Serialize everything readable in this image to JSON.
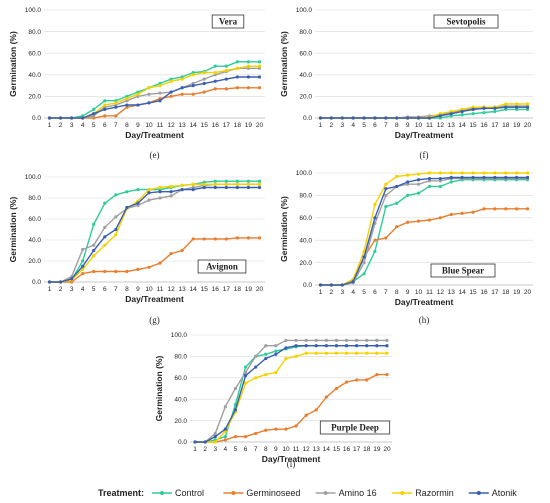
{
  "legend": {
    "heading": "Treatment:",
    "items": [
      {
        "name": "Control",
        "color": "#2ecc9a"
      },
      {
        "name": "Germinoseed",
        "color": "#e87e2e"
      },
      {
        "name": "Amino 16",
        "color": "#a0a0a0"
      },
      {
        "name": "Razormin",
        "color": "#f4d200"
      },
      {
        "name": "Atonik",
        "color": "#3a5fb0"
      }
    ]
  },
  "chart_data": [
    {
      "type": "line",
      "letter": "(e)",
      "title": "Vera",
      "xlabel": "Day/Treatment",
      "ylabel": "Germination (%)",
      "ylim": [
        0,
        100
      ],
      "yticks": [
        "0.0",
        "20.0",
        "40.0",
        "60.0",
        "80.0",
        "100.0"
      ],
      "x": [
        1,
        2,
        3,
        4,
        5,
        6,
        7,
        8,
        9,
        10,
        11,
        12,
        13,
        14,
        15,
        16,
        17,
        18,
        19,
        20
      ],
      "series": [
        {
          "name": "Control",
          "values": [
            0,
            0,
            0,
            2,
            8,
            16,
            16,
            20,
            24,
            28,
            32,
            36,
            38,
            42,
            43,
            48,
            48,
            52,
            52,
            52
          ]
        },
        {
          "name": "Germinoseed",
          "values": [
            0,
            0,
            0,
            0,
            0,
            2,
            2,
            10,
            12,
            14,
            18,
            20,
            22,
            22,
            24,
            27,
            27,
            28,
            28,
            28
          ]
        },
        {
          "name": "Amino 16",
          "values": [
            0,
            0,
            0,
            0,
            2,
            10,
            12,
            16,
            20,
            22,
            23,
            24,
            28,
            32,
            36,
            40,
            43,
            46,
            46,
            46
          ]
        },
        {
          "name": "Razormin",
          "values": [
            0,
            0,
            0,
            0,
            4,
            12,
            14,
            18,
            22,
            28,
            30,
            34,
            36,
            40,
            42,
            42,
            44,
            46,
            48,
            48
          ]
        },
        {
          "name": "Atonik",
          "values": [
            0,
            0,
            0,
            0,
            4,
            8,
            10,
            12,
            12,
            14,
            16,
            24,
            28,
            30,
            32,
            34,
            36,
            38,
            38,
            38
          ]
        }
      ]
    },
    {
      "type": "line",
      "letter": "(f)",
      "title": "Sevtopolis",
      "xlabel": "Day/Treatment",
      "ylabel": "Germination (%)",
      "ylim": [
        0,
        100
      ],
      "yticks": [
        "0.0",
        "20.0",
        "40.0",
        "60.0",
        "80.0",
        "100.0"
      ],
      "x": [
        1,
        2,
        3,
        4,
        5,
        6,
        7,
        8,
        9,
        10,
        11,
        12,
        13,
        14,
        15,
        16,
        17,
        18,
        19,
        20
      ],
      "series": [
        {
          "name": "Control",
          "values": [
            0,
            0,
            0,
            0,
            0,
            0,
            0,
            0,
            0,
            0,
            0,
            0,
            2,
            3,
            4,
            5,
            6,
            8,
            8,
            8
          ]
        },
        {
          "name": "Germinoseed",
          "values": [
            0,
            0,
            0,
            0,
            0,
            0,
            0,
            0,
            0,
            0,
            0,
            2,
            4,
            6,
            8,
            9,
            9,
            10,
            10,
            10
          ]
        },
        {
          "name": "Amino 16",
          "values": [
            0,
            0,
            0,
            0,
            0,
            0,
            0,
            0,
            1,
            1,
            2,
            3,
            5,
            7,
            9,
            10,
            10,
            11,
            11,
            11
          ]
        },
        {
          "name": "Razormin",
          "values": [
            0,
            0,
            0,
            0,
            0,
            0,
            0,
            0,
            0,
            0,
            1,
            4,
            6,
            8,
            10,
            10,
            10,
            13,
            13,
            13
          ]
        },
        {
          "name": "Atonik",
          "values": [
            0,
            0,
            0,
            0,
            0,
            0,
            0,
            0,
            0,
            0,
            0,
            2,
            4,
            6,
            8,
            9,
            9,
            10,
            10,
            10
          ]
        }
      ]
    },
    {
      "type": "line",
      "letter": "(g)",
      "title": "Avignon",
      "xlabel": "Day/Treatment",
      "ylabel": "Germination (%)",
      "ylim": [
        0,
        100
      ],
      "yticks": [
        "0.0",
        "20.0",
        "40.0",
        "60.0",
        "80.0",
        "100.0"
      ],
      "x": [
        1,
        2,
        3,
        4,
        5,
        6,
        7,
        8,
        9,
        10,
        11,
        12,
        13,
        14,
        15,
        16,
        17,
        18,
        19,
        20
      ],
      "series": [
        {
          "name": "Control",
          "values": [
            0,
            0,
            2,
            20,
            55,
            75,
            83,
            86,
            88,
            88,
            88,
            90,
            92,
            93,
            95,
            96,
            96,
            96,
            96,
            96
          ]
        },
        {
          "name": "Germinoseed",
          "values": [
            0,
            0,
            0,
            8,
            10,
            10,
            10,
            10,
            12,
            14,
            18,
            27,
            30,
            41,
            41,
            41,
            41,
            42,
            42,
            42
          ]
        },
        {
          "name": "Amino 16",
          "values": [
            0,
            0,
            5,
            31,
            35,
            52,
            62,
            70,
            73,
            78,
            80,
            82,
            88,
            90,
            92,
            93,
            93,
            93,
            93,
            93
          ]
        },
        {
          "name": "Razormin",
          "values": [
            0,
            0,
            2,
            12,
            25,
            35,
            45,
            70,
            77,
            88,
            90,
            91,
            92,
            93,
            93,
            93,
            93,
            93,
            93,
            93
          ]
        },
        {
          "name": "Atonik",
          "values": [
            0,
            0,
            3,
            15,
            30,
            43,
            50,
            71,
            75,
            85,
            86,
            86,
            88,
            88,
            90,
            90,
            90,
            90,
            90,
            90
          ]
        }
      ]
    },
    {
      "type": "line",
      "letter": "(h)",
      "title": "Blue Spear",
      "xlabel": "Day/Treatment",
      "ylabel": "Germination (%)",
      "ylim": [
        0,
        100
      ],
      "yticks": [
        "0.0",
        "20.0",
        "40.0",
        "60.0",
        "80.0",
        "100.0"
      ],
      "x": [
        1,
        2,
        3,
        4,
        5,
        6,
        7,
        8,
        9,
        10,
        11,
        12,
        13,
        14,
        15,
        16,
        17,
        18,
        19,
        20
      ],
      "series": [
        {
          "name": "Control",
          "values": [
            0,
            0,
            0,
            3,
            10,
            30,
            70,
            73,
            80,
            82,
            88,
            88,
            92,
            94,
            94,
            94,
            94,
            94,
            94,
            94
          ]
        },
        {
          "name": "Germinoseed",
          "values": [
            0,
            0,
            0,
            5,
            25,
            40,
            42,
            52,
            56,
            57,
            58,
            60,
            63,
            64,
            65,
            68,
            68,
            68,
            68,
            68
          ]
        },
        {
          "name": "Amino 16",
          "values": [
            0,
            0,
            0,
            2,
            20,
            55,
            80,
            88,
            90,
            90,
            93,
            93,
            95,
            95,
            95,
            95,
            95,
            95,
            95,
            95
          ]
        },
        {
          "name": "Razormin",
          "values": [
            0,
            0,
            0,
            5,
            30,
            72,
            90,
            97,
            98,
            99,
            100,
            100,
            100,
            100,
            100,
            100,
            100,
            100,
            100,
            100
          ]
        },
        {
          "name": "Atonik",
          "values": [
            0,
            0,
            0,
            3,
            25,
            60,
            86,
            88,
            92,
            94,
            95,
            95,
            96,
            96,
            96,
            96,
            96,
            96,
            96,
            96
          ]
        }
      ]
    },
    {
      "type": "line",
      "letter": "(i)",
      "title": "Purple Deep",
      "xlabel": "Day/Treatment",
      "ylabel": "Germination (%)",
      "ylim": [
        0,
        100
      ],
      "yticks": [
        "0.0",
        "20.0",
        "40.0",
        "60.0",
        "80.0",
        "100.0"
      ],
      "x": [
        1,
        2,
        3,
        4,
        5,
        6,
        7,
        8,
        9,
        10,
        11,
        12,
        13,
        14,
        15,
        16,
        17,
        18,
        19,
        20
      ],
      "series": [
        {
          "name": "Control",
          "values": [
            0,
            0,
            2,
            5,
            35,
            70,
            80,
            82,
            85,
            87,
            89,
            90,
            90,
            90,
            90,
            90,
            90,
            90,
            90,
            90
          ]
        },
        {
          "name": "Germinoseed",
          "values": [
            0,
            0,
            0,
            2,
            5,
            5,
            8,
            11,
            12,
            12,
            15,
            25,
            30,
            42,
            50,
            56,
            58,
            58,
            63,
            63
          ]
        },
        {
          "name": "Amino 16",
          "values": [
            0,
            0,
            8,
            33,
            50,
            65,
            80,
            90,
            90,
            95,
            95,
            95,
            95,
            95,
            95,
            95,
            95,
            95,
            95,
            95
          ]
        },
        {
          "name": "Razormin",
          "values": [
            0,
            0,
            0,
            10,
            28,
            55,
            60,
            63,
            65,
            78,
            80,
            83,
            83,
            83,
            83,
            83,
            83,
            83,
            83,
            83
          ]
        },
        {
          "name": "Atonik",
          "values": [
            0,
            0,
            5,
            12,
            30,
            62,
            70,
            78,
            82,
            88,
            90,
            90,
            90,
            90,
            90,
            90,
            90,
            90,
            90,
            90
          ]
        }
      ]
    }
  ]
}
